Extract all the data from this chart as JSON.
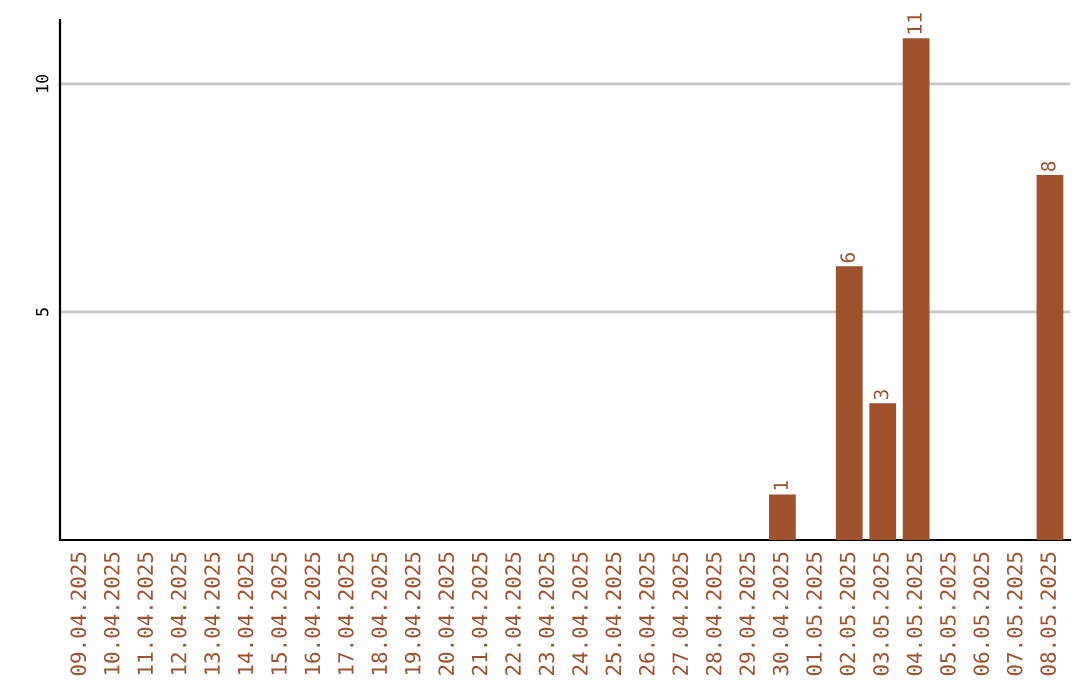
{
  "chart_data": {
    "type": "bar",
    "categories": [
      "09.04.2025",
      "10.04.2025",
      "11.04.2025",
      "12.04.2025",
      "13.04.2025",
      "14.04.2025",
      "15.04.2025",
      "16.04.2025",
      "17.04.2025",
      "18.04.2025",
      "19.04.2025",
      "20.04.2025",
      "21.04.2025",
      "22.04.2025",
      "23.04.2025",
      "24.04.2025",
      "25.04.2025",
      "26.04.2025",
      "27.04.2025",
      "28.04.2025",
      "29.04.2025",
      "30.04.2025",
      "01.05.2025",
      "02.05.2025",
      "03.05.2025",
      "04.05.2025",
      "05.05.2025",
      "06.05.2025",
      "07.05.2025",
      "08.05.2025"
    ],
    "values": [
      0,
      0,
      0,
      0,
      0,
      0,
      0,
      0,
      0,
      0,
      0,
      0,
      0,
      0,
      0,
      0,
      0,
      0,
      0,
      0,
      0,
      1,
      0,
      6,
      3,
      11,
      0,
      0,
      0,
      8
    ],
    "value_labels": [
      null,
      null,
      null,
      null,
      null,
      null,
      null,
      null,
      null,
      null,
      null,
      null,
      null,
      null,
      null,
      null,
      null,
      null,
      null,
      null,
      null,
      "1",
      null,
      "6",
      "3",
      "11",
      null,
      null,
      null,
      "8"
    ],
    "color": "#a0522d",
    "ylim": [
      0,
      11.4
    ],
    "yticks": [
      5,
      10
    ],
    "grid": "y"
  }
}
